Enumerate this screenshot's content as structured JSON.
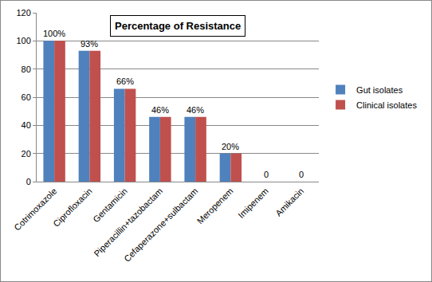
{
  "chart_data": {
    "type": "bar",
    "title": "Percentage of Resistance",
    "categories": [
      "Cotrimoxazole",
      "Ciprofloxacin",
      "Gentamicin",
      "Piperacillin+tazobactam",
      "Cefaperazone+sulbactam",
      "Meropenem",
      "Imipenem",
      "Amikacin"
    ],
    "series": [
      {
        "name": "Gut isolates",
        "color": "#4f81bd",
        "values": [
          100,
          93,
          66,
          46,
          46,
          20,
          0,
          0
        ],
        "value_labels": [
          "100%",
          "93%",
          "66%",
          "46%",
          "46%",
          "20%",
          "0",
          "0"
        ]
      },
      {
        "name": "Clinical isolates",
        "color": "#c0504d",
        "values": [
          100,
          93,
          66,
          46,
          46,
          20,
          0,
          0
        ]
      }
    ],
    "ylim": [
      0,
      120
    ],
    "yticks": [
      0,
      20,
      40,
      60,
      80,
      100,
      120
    ],
    "grid": true,
    "legend": "right",
    "data_labels": true
  }
}
